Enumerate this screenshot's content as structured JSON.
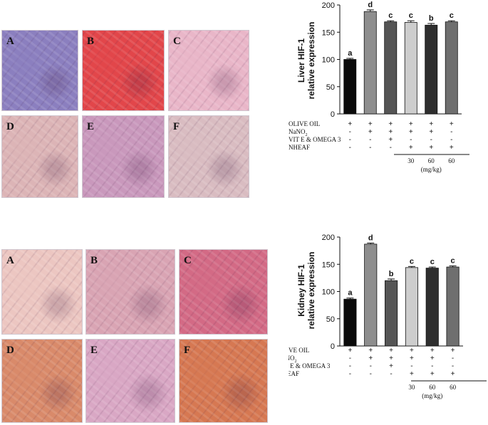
{
  "figure": {
    "top_panel_labels": [
      "A",
      "B",
      "C",
      "D",
      "E",
      "F"
    ],
    "bottom_panel_labels": [
      "A",
      "B",
      "C",
      "D",
      "E",
      "F"
    ],
    "top_panel_colors": [
      "#8b7fbf",
      "#e2464a",
      "#e9b6c8",
      "#dcb4b6",
      "#c998bc",
      "#d9bcc1"
    ],
    "bottom_panel_colors": [
      "#ecc6c1",
      "#d9a4b3",
      "#d36a85",
      "#d98a6a",
      "#d9a7c4",
      "#d67852"
    ]
  },
  "conditions": {
    "row_labels": [
      "OLIVE OIL",
      "NaNO",
      "VIT E & OMEGA 3",
      "NHEAF"
    ],
    "nano_subscript": "2",
    "dose_labels": [
      "30",
      "60",
      "60"
    ],
    "dose_unit": "(mg/kg)",
    "liver_rows": [
      [
        "+",
        "+",
        "+",
        "+",
        "+",
        "+"
      ],
      [
        "-",
        "+",
        "+",
        "+",
        "+",
        "-"
      ],
      [
        "-",
        "-",
        "+",
        "-",
        "-",
        "-"
      ],
      [
        "-",
        "-",
        "-",
        "+",
        "+",
        "+"
      ]
    ],
    "kidney_rows": [
      [
        "+",
        "+",
        "+",
        "+",
        "+",
        "+"
      ],
      [
        "-",
        "+",
        "+",
        "+",
        "+",
        "-"
      ],
      [
        "-",
        "-",
        "+",
        "-",
        "-",
        "-"
      ],
      [
        "-",
        "-",
        "-",
        "+",
        "+",
        "+"
      ]
    ]
  },
  "chart_data": [
    {
      "type": "bar",
      "ylabel": "Liver HIF-1 relative expression",
      "ylabel_lines": [
        "Liver HIF-1",
        "relative expression"
      ],
      "ylim": [
        0,
        200
      ],
      "yticks": [
        0,
        50,
        100,
        150,
        200
      ],
      "categories": [
        "Olive oil",
        "NaNO2",
        "NaNO2 + Vit E & Omega 3",
        "NaNO2 + NHEAF 30 mg/kg",
        "NaNO2 + NHEAF 60 mg/kg",
        "NHEAF 60 mg/kg"
      ],
      "values": [
        100,
        188,
        169,
        168,
        163,
        169
      ],
      "errors": [
        2,
        3,
        2,
        3,
        3,
        2
      ],
      "letters": [
        "a",
        "d",
        "c",
        "c",
        "b",
        "c"
      ],
      "colors": [
        "#0a0a0a",
        "#8e8e8e",
        "#555555",
        "#cdcdcd",
        "#2e2e2e",
        "#6f6f6f"
      ]
    },
    {
      "type": "bar",
      "ylabel": "Kidney HIF-1 relative expression",
      "ylabel_lines": [
        "Kidney HIF-1",
        "relative expression"
      ],
      "ylim": [
        0,
        200
      ],
      "yticks": [
        0,
        50,
        100,
        150,
        200
      ],
      "categories": [
        "Olive oil",
        "NaNO2",
        "NaNO2 + Vit E & Omega 3",
        "NaNO2 + NHEAF 30 mg/kg",
        "NaNO2 + NHEAF 60 mg/kg",
        "NHEAF 60 mg/kg"
      ],
      "values": [
        86,
        187,
        120,
        144,
        143,
        145
      ],
      "errors": [
        2,
        2,
        3,
        2,
        2,
        2
      ],
      "letters": [
        "a",
        "d",
        "b",
        "c",
        "c",
        "c"
      ],
      "colors": [
        "#0a0a0a",
        "#8e8e8e",
        "#555555",
        "#cdcdcd",
        "#2e2e2e",
        "#6f6f6f"
      ]
    }
  ]
}
